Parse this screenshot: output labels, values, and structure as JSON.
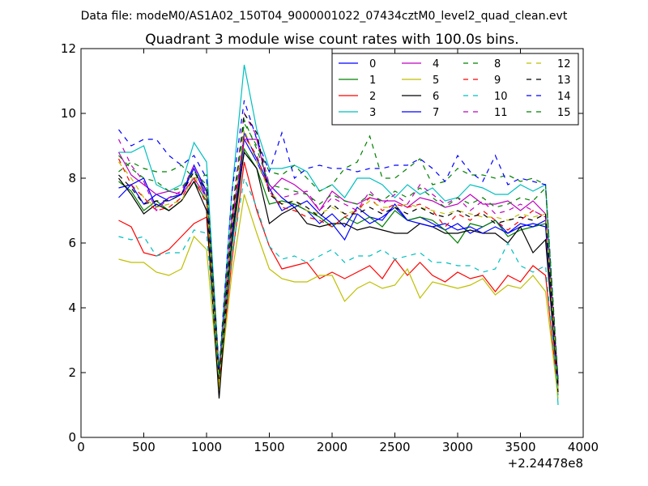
{
  "chart_data": {
    "type": "line",
    "suptitle": "Data file: modeM0/AS1A02_150T04_9000001022_07434cztM0_level2_quad_clean.evt",
    "title": "Quadrant 3 module wise count rates with 100.0s bins.",
    "xlabel": "",
    "ylabel": "",
    "x_offset_label": "+2.24478e8",
    "xlim": [
      0,
      4000
    ],
    "ylim": [
      0,
      12
    ],
    "x_ticks": [
      0,
      500,
      1000,
      1500,
      2000,
      2500,
      3000,
      3500,
      4000
    ],
    "y_ticks": [
      0,
      2,
      4,
      6,
      8,
      10,
      12
    ],
    "x_tick_labels": [
      "0",
      "500",
      "1000",
      "1500",
      "2000",
      "2500",
      "3000",
      "3500",
      "4000"
    ],
    "y_tick_labels": [
      "0",
      "2",
      "4",
      "6",
      "8",
      "10",
      "12"
    ],
    "grid": false,
    "legend_position": "top-right",
    "x": [
      300,
      400,
      500,
      600,
      700,
      800,
      900,
      1000,
      1100,
      1200,
      1300,
      1400,
      1500,
      1600,
      1700,
      1800,
      1900,
      2000,
      2100,
      2200,
      2300,
      2400,
      2500,
      2600,
      2700,
      2800,
      2900,
      3000,
      3100,
      3200,
      3300,
      3400,
      3500,
      3600,
      3700,
      3800
    ],
    "series": [
      {
        "name": "0",
        "color": "#0000ff",
        "dash": "solid",
        "values": [
          7.7,
          7.8,
          7.2,
          7.5,
          7.3,
          7.5,
          8.3,
          7.4,
          1.9,
          6.0,
          9.2,
          8.5,
          7.7,
          7.0,
          7.2,
          7.0,
          6.6,
          6.9,
          6.5,
          7.1,
          6.8,
          6.7,
          7.2,
          6.7,
          6.8,
          6.6,
          6.4,
          6.6,
          6.3,
          6.5,
          6.7,
          6.3,
          6.5,
          6.6,
          6.5,
          1.5
        ]
      },
      {
        "name": "1",
        "color": "#008000",
        "dash": "solid",
        "values": [
          7.9,
          7.6,
          7.0,
          7.3,
          7.0,
          7.3,
          7.9,
          7.3,
          1.8,
          5.8,
          8.9,
          8.3,
          7.2,
          7.3,
          7.2,
          7.0,
          6.8,
          6.5,
          6.8,
          6.6,
          6.8,
          6.5,
          7.0,
          6.7,
          6.8,
          6.7,
          6.4,
          6.0,
          6.6,
          6.5,
          6.7,
          6.2,
          6.4,
          6.5,
          6.6,
          1.6
        ]
      },
      {
        "name": "2",
        "color": "#ff0000",
        "dash": "solid",
        "values": [
          6.7,
          6.5,
          5.7,
          5.6,
          5.8,
          6.2,
          6.6,
          6.8,
          1.6,
          5.4,
          8.5,
          7.0,
          5.9,
          5.2,
          5.3,
          5.4,
          4.9,
          5.1,
          4.9,
          5.1,
          5.3,
          4.9,
          5.5,
          5.0,
          5.4,
          5.0,
          4.8,
          5.1,
          4.9,
          5.0,
          4.5,
          5.0,
          4.8,
          5.3,
          5.0,
          1.3
        ]
      },
      {
        "name": "3",
        "color": "#00bfbf",
        "dash": "solid",
        "values": [
          8.8,
          8.8,
          9.0,
          7.8,
          7.6,
          7.8,
          9.1,
          8.5,
          2.0,
          7.5,
          11.5,
          9.5,
          8.3,
          8.3,
          8.4,
          8.2,
          7.6,
          7.8,
          7.4,
          8.0,
          8.0,
          7.8,
          7.4,
          7.8,
          7.5,
          7.7,
          7.3,
          7.4,
          7.8,
          7.7,
          7.5,
          7.5,
          7.8,
          7.6,
          7.8,
          1.0
        ]
      },
      {
        "name": "4",
        "color": "#bf00bf",
        "dash": "solid",
        "values": [
          8.8,
          8.1,
          7.8,
          7.5,
          7.6,
          7.5,
          8.0,
          7.4,
          1.9,
          6.7,
          9.2,
          9.2,
          7.6,
          8.0,
          7.8,
          7.5,
          7.0,
          7.6,
          7.3,
          7.2,
          7.4,
          7.3,
          7.3,
          7.1,
          7.4,
          7.3,
          7.1,
          7.2,
          7.5,
          7.2,
          7.2,
          7.3,
          7.0,
          7.3,
          6.9,
          1.8
        ]
      },
      {
        "name": "5",
        "color": "#bfbf00",
        "dash": "solid",
        "values": [
          5.5,
          5.4,
          5.4,
          5.1,
          5.0,
          5.2,
          6.2,
          5.8,
          1.5,
          5.0,
          7.5,
          6.3,
          5.2,
          4.9,
          4.8,
          4.8,
          5.0,
          5.0,
          4.2,
          4.6,
          4.8,
          4.6,
          4.7,
          5.2,
          4.3,
          4.8,
          4.7,
          4.6,
          4.7,
          4.9,
          4.4,
          4.7,
          4.6,
          5.0,
          4.5,
          1.2
        ]
      },
      {
        "name": "6",
        "color": "#000000",
        "dash": "solid",
        "values": [
          8.0,
          7.5,
          6.9,
          7.2,
          7.0,
          7.3,
          7.9,
          7.0,
          1.2,
          6.2,
          8.8,
          8.3,
          6.6,
          6.9,
          7.1,
          6.6,
          6.5,
          6.6,
          6.6,
          6.4,
          6.5,
          6.4,
          6.3,
          6.3,
          6.6,
          6.5,
          6.3,
          6.3,
          6.4,
          6.3,
          6.3,
          6.0,
          6.5,
          5.7,
          6.1,
          1.4
        ]
      },
      {
        "name": "7",
        "color": "#0000ff",
        "dash": "solid",
        "values": [
          7.4,
          7.8,
          8.0,
          7.1,
          7.4,
          7.5,
          8.4,
          7.6,
          2.0,
          6.3,
          9.4,
          8.6,
          7.8,
          7.4,
          7.1,
          7.3,
          6.9,
          6.6,
          6.1,
          6.9,
          6.6,
          6.8,
          7.1,
          6.7,
          6.6,
          6.5,
          6.6,
          6.4,
          6.5,
          6.3,
          6.5,
          6.3,
          6.6,
          6.5,
          6.7,
          1.5
        ]
      },
      {
        "name": "8",
        "color": "#008000",
        "dash": "dashed",
        "values": [
          8.2,
          8.5,
          8.3,
          8.2,
          8.2,
          8.4,
          8.0,
          8.1,
          2.1,
          6.8,
          9.7,
          9.0,
          8.2,
          8.1,
          8.4,
          8.0,
          7.6,
          7.8,
          8.3,
          8.5,
          9.3,
          8.0,
          8.0,
          8.3,
          8.6,
          7.8,
          7.9,
          8.3,
          8.1,
          8.1,
          8.0,
          8.1,
          7.9,
          8.0,
          7.8,
          1.7
        ]
      },
      {
        "name": "9",
        "color": "#ff0000",
        "dash": "dashed",
        "values": [
          8.6,
          7.8,
          7.4,
          7.0,
          7.1,
          7.4,
          8.0,
          7.2,
          1.9,
          6.5,
          9.3,
          8.7,
          7.6,
          7.1,
          7.0,
          6.8,
          6.7,
          6.5,
          6.8,
          7.0,
          7.4,
          7.0,
          7.2,
          7.1,
          7.2,
          7.0,
          6.5,
          6.9,
          6.7,
          7.0,
          6.7,
          6.4,
          6.7,
          7.0,
          6.8,
          1.6
        ]
      },
      {
        "name": "10",
        "color": "#00bfbf",
        "dash": "dashed",
        "values": [
          6.2,
          6.1,
          6.2,
          5.6,
          5.7,
          5.7,
          6.4,
          6.3,
          1.8,
          5.6,
          8.0,
          7.1,
          5.9,
          5.5,
          5.6,
          5.4,
          5.6,
          5.8,
          5.4,
          5.6,
          5.6,
          5.8,
          5.5,
          5.6,
          5.7,
          5.4,
          5.4,
          5.3,
          5.3,
          5.1,
          5.2,
          6.0,
          5.3,
          5.1,
          5.3,
          1.3
        ]
      },
      {
        "name": "11",
        "color": "#bf00bf",
        "dash": "dashed",
        "values": [
          9.2,
          8.4,
          7.9,
          7.0,
          7.4,
          7.6,
          8.4,
          7.5,
          2.0,
          6.9,
          10.0,
          9.3,
          7.8,
          7.4,
          7.5,
          7.6,
          7.0,
          7.4,
          7.2,
          7.0,
          7.6,
          7.2,
          7.5,
          7.2,
          7.8,
          7.5,
          7.2,
          7.4,
          7.0,
          7.3,
          6.9,
          7.0,
          7.2,
          7.0,
          6.8,
          1.7
        ]
      },
      {
        "name": "12",
        "color": "#bfbf00",
        "dash": "dashed",
        "values": [
          8.5,
          8.0,
          7.4,
          7.1,
          7.2,
          7.3,
          8.1,
          7.4,
          1.7,
          6.4,
          9.5,
          8.5,
          7.6,
          7.2,
          7.3,
          7.0,
          6.9,
          7.1,
          6.9,
          7.0,
          7.3,
          7.1,
          7.1,
          7.2,
          7.1,
          7.0,
          6.9,
          7.0,
          6.9,
          6.8,
          6.8,
          6.7,
          6.9,
          6.8,
          6.9,
          1.5
        ]
      },
      {
        "name": "13",
        "color": "#000000",
        "dash": "dashed",
        "values": [
          8.1,
          7.7,
          7.2,
          7.3,
          7.3,
          7.5,
          8.2,
          7.6,
          1.8,
          6.6,
          10.0,
          9.4,
          7.5,
          7.2,
          7.3,
          7.1,
          6.8,
          7.2,
          6.9,
          6.9,
          7.1,
          6.9,
          7.1,
          6.9,
          7.1,
          6.9,
          6.8,
          7.0,
          6.8,
          6.9,
          6.6,
          6.7,
          6.8,
          6.7,
          6.9,
          1.6
        ]
      },
      {
        "name": "14",
        "color": "#0000ff",
        "dash": "dashed",
        "values": [
          9.5,
          9.0,
          9.2,
          9.2,
          8.7,
          8.4,
          8.7,
          8.0,
          2.1,
          7.5,
          10.4,
          9.2,
          8.2,
          9.4,
          8.0,
          8.3,
          8.4,
          8.3,
          8.3,
          8.2,
          8.3,
          8.3,
          8.4,
          8.4,
          8.6,
          8.3,
          7.9,
          8.7,
          8.2,
          7.9,
          8.7,
          7.8,
          8.0,
          7.9,
          7.8,
          1.8
        ]
      },
      {
        "name": "15",
        "color": "#008000",
        "dash": "dashed",
        "values": [
          8.7,
          8.3,
          8.0,
          7.9,
          7.6,
          7.7,
          8.2,
          7.8,
          2.0,
          6.9,
          9.8,
          8.9,
          7.8,
          7.7,
          7.6,
          7.5,
          7.2,
          7.5,
          7.3,
          7.2,
          7.5,
          7.3,
          7.6,
          7.4,
          7.7,
          7.4,
          7.1,
          7.4,
          7.2,
          7.4,
          7.1,
          7.2,
          7.4,
          7.3,
          7.7,
          1.7
        ]
      }
    ]
  }
}
